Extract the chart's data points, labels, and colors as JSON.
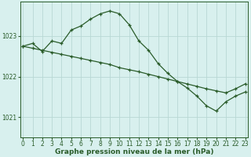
{
  "bg_color": "#d8f0ee",
  "plot_bg_color": "#d8f0ee",
  "grid_color": "#b8d8d4",
  "line_color": "#2a5c2a",
  "title": "Graphe pression niveau de la mer (hPa)",
  "title_fontsize": 6.5,
  "ylim": [
    1020.5,
    1023.85
  ],
  "xlim": [
    -0.3,
    23.3
  ],
  "yticks": [
    1021,
    1022,
    1023
  ],
  "xticks": [
    0,
    1,
    2,
    3,
    4,
    5,
    6,
    7,
    8,
    9,
    10,
    11,
    12,
    13,
    14,
    15,
    16,
    17,
    18,
    19,
    20,
    21,
    22,
    23
  ],
  "series1_x": [
    0,
    1,
    2,
    3,
    4,
    5,
    6,
    7,
    8,
    9,
    10,
    11,
    12,
    13,
    14,
    15,
    16,
    17,
    18,
    19,
    20,
    21,
    22,
    23
  ],
  "series1_y": [
    1022.75,
    1022.82,
    1022.62,
    1022.88,
    1022.82,
    1023.15,
    1023.25,
    1023.42,
    1023.55,
    1023.62,
    1023.55,
    1023.28,
    1022.88,
    1022.65,
    1022.32,
    1022.08,
    1021.88,
    1021.72,
    1021.52,
    1021.28,
    1021.15,
    1021.38,
    1021.52,
    1021.62
  ],
  "series2_x": [
    0,
    1,
    2,
    3,
    4,
    5,
    6,
    7,
    8,
    9,
    10,
    11,
    12,
    13,
    14,
    15,
    16,
    17,
    18,
    19,
    20,
    21,
    22,
    23
  ],
  "series2_y": [
    1022.75,
    1022.7,
    1022.65,
    1022.6,
    1022.55,
    1022.5,
    1022.45,
    1022.4,
    1022.35,
    1022.3,
    1022.22,
    1022.17,
    1022.12,
    1022.06,
    1022.0,
    1021.94,
    1021.88,
    1021.82,
    1021.76,
    1021.7,
    1021.65,
    1021.6,
    1021.7,
    1021.82
  ],
  "bottom_bar_color": "#2a5c2a",
  "tick_labelsize": 5.5,
  "ylabel_labelsize": 5.5
}
